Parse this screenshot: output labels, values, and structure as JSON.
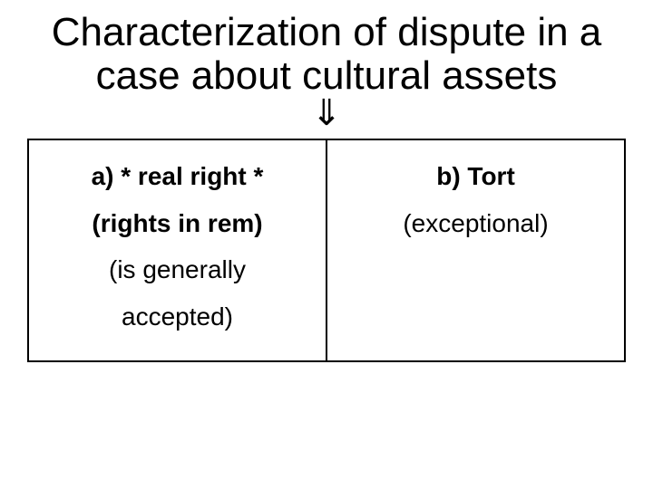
{
  "title": "Characterization of dispute in a case about cultural assets",
  "arrow": "⇓",
  "table": {
    "border_color": "#000000",
    "left": {
      "heading": "a) * real right *",
      "line1": "(rights in rem)",
      "line2": "(is generally",
      "line3": "accepted)"
    },
    "right": {
      "heading": "b) Tort",
      "line1": "(exceptional)"
    }
  },
  "colors": {
    "background": "#ffffff",
    "text": "#000000"
  },
  "typography": {
    "title_fontsize": 44,
    "cell_fontsize": 28,
    "font_family": "Verdana"
  }
}
